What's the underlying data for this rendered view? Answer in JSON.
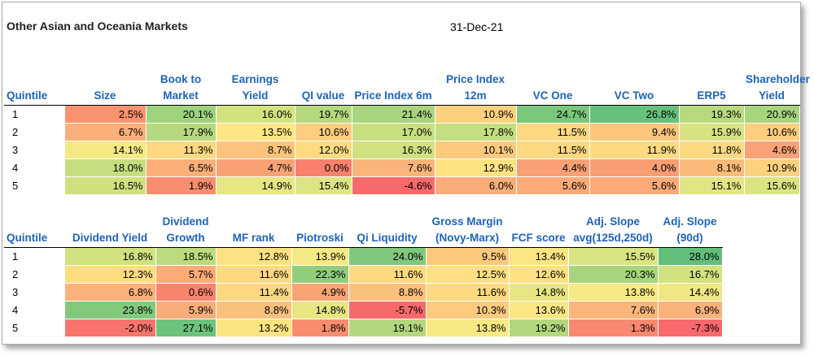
{
  "title": "Other Asian and Oceania Markets",
  "date": "31-Dec-21",
  "table1": {
    "headers": [
      "Quintile",
      "Size",
      "Book to Market",
      "Earnings Yield",
      "QI value",
      "Price Index 6m",
      "Price Index 12m",
      "VC One",
      "VC Two",
      "ERP5",
      "Shareholder Yield"
    ],
    "rows": [
      {
        "q": "1",
        "cells": [
          {
            "v": "2.5%",
            "c": "#f8926f"
          },
          {
            "v": "20.1%",
            "c": "#9fd27d"
          },
          {
            "v": "16.0%",
            "c": "#d3e27f"
          },
          {
            "v": "19.7%",
            "c": "#b5d87e"
          },
          {
            "v": "21.4%",
            "c": "#a9d47e"
          },
          {
            "v": "10.9%",
            "c": "#fbd17f"
          },
          {
            "v": "24.7%",
            "c": "#7ac77b"
          },
          {
            "v": "26.8%",
            "c": "#66c17b"
          },
          {
            "v": "19.3%",
            "c": "#b8d97e"
          },
          {
            "v": "20.9%",
            "c": "#a8d47e"
          }
        ]
      },
      {
        "q": "2",
        "cells": [
          {
            "v": "6.7%",
            "c": "#fbb07a"
          },
          {
            "v": "17.9%",
            "c": "#b6d87e"
          },
          {
            "v": "13.5%",
            "c": "#fde683"
          },
          {
            "v": "10.6%",
            "c": "#fecd7e"
          },
          {
            "v": "17.0%",
            "c": "#c7df7f"
          },
          {
            "v": "17.8%",
            "c": "#c2de7f"
          },
          {
            "v": "11.5%",
            "c": "#fcd880"
          },
          {
            "v": "9.4%",
            "c": "#fcc67d"
          },
          {
            "v": "15.9%",
            "c": "#d7e381"
          },
          {
            "v": "10.6%",
            "c": "#fecd7e"
          }
        ]
      },
      {
        "q": "3",
        "cells": [
          {
            "v": "14.1%",
            "c": "#f5e984"
          },
          {
            "v": "11.3%",
            "c": "#fdd880"
          },
          {
            "v": "8.7%",
            "c": "#fdc37c"
          },
          {
            "v": "12.0%",
            "c": "#fedb81"
          },
          {
            "v": "16.3%",
            "c": "#d0e17f"
          },
          {
            "v": "10.1%",
            "c": "#fcc97d"
          },
          {
            "v": "11.5%",
            "c": "#fcd880"
          },
          {
            "v": "11.9%",
            "c": "#fdda81"
          },
          {
            "v": "11.8%",
            "c": "#fdda81"
          },
          {
            "v": "4.6%",
            "c": "#f9a275"
          }
        ]
      },
      {
        "q": "4",
        "cells": [
          {
            "v": "18.0%",
            "c": "#c4de7f"
          },
          {
            "v": "6.5%",
            "c": "#fbaf79"
          },
          {
            "v": "4.7%",
            "c": "#f9a275"
          },
          {
            "v": "0.0%",
            "c": "#f8806d"
          },
          {
            "v": "7.6%",
            "c": "#fbb57a"
          },
          {
            "v": "12.9%",
            "c": "#fee282"
          },
          {
            "v": "4.4%",
            "c": "#f9a074"
          },
          {
            "v": "4.0%",
            "c": "#f99d73"
          },
          {
            "v": "8.1%",
            "c": "#fbbb7b"
          },
          {
            "v": "10.9%",
            "c": "#fdd17f"
          }
        ]
      },
      {
        "q": "5",
        "cells": [
          {
            "v": "16.5%",
            "c": "#cfe17f"
          },
          {
            "v": "1.9%",
            "c": "#f88d6f"
          },
          {
            "v": "14.9%",
            "c": "#e6e683"
          },
          {
            "v": "15.4%",
            "c": "#dde483"
          },
          {
            "v": "-4.6%",
            "c": "#f8696b"
          },
          {
            "v": "6.0%",
            "c": "#fbad79"
          },
          {
            "v": "5.6%",
            "c": "#fbaa78"
          },
          {
            "v": "5.6%",
            "c": "#fbaa78"
          },
          {
            "v": "15.1%",
            "c": "#e2e583"
          },
          {
            "v": "15.6%",
            "c": "#dbe482"
          }
        ]
      }
    ]
  },
  "table2": {
    "headers": [
      "Quintile",
      "Dividend Yield",
      "Dividend Growth",
      "MF rank",
      "Piotroski",
      "Qi Liquidity",
      "Gross Margin (Novy-Marx)",
      "FCF score",
      "Adj. Slope avg(125d,250d)",
      "Adj. Slope (90d)"
    ],
    "rows": [
      {
        "q": "1",
        "cells": [
          {
            "v": "16.8%",
            "c": "#d0e17f"
          },
          {
            "v": "18.5%",
            "c": "#bcdb7e"
          },
          {
            "v": "12.8%",
            "c": "#fde182"
          },
          {
            "v": "13.9%",
            "c": "#f4e984"
          },
          {
            "v": "24.0%",
            "c": "#80c87c"
          },
          {
            "v": "9.5%",
            "c": "#fcc87d"
          },
          {
            "v": "13.4%",
            "c": "#fde583"
          },
          {
            "v": "15.5%",
            "c": "#dbe482"
          },
          {
            "v": "28.0%",
            "c": "#63be7b"
          }
        ]
      },
      {
        "q": "2",
        "cells": [
          {
            "v": "12.3%",
            "c": "#fedd81"
          },
          {
            "v": "5.7%",
            "c": "#fbab78"
          },
          {
            "v": "11.6%",
            "c": "#fdd980"
          },
          {
            "v": "22.3%",
            "c": "#91cd7d"
          },
          {
            "v": "11.6%",
            "c": "#fdd980"
          },
          {
            "v": "12.5%",
            "c": "#fedf81"
          },
          {
            "v": "12.6%",
            "c": "#fee081"
          },
          {
            "v": "20.3%",
            "c": "#a8d47e"
          },
          {
            "v": "16.7%",
            "c": "#d2e27f"
          }
        ]
      },
      {
        "q": "3",
        "cells": [
          {
            "v": "6.8%",
            "c": "#fbb17a"
          },
          {
            "v": "0.6%",
            "c": "#f8846e"
          },
          {
            "v": "11.4%",
            "c": "#fdd880"
          },
          {
            "v": "4.9%",
            "c": "#f9a475"
          },
          {
            "v": "8.8%",
            "c": "#fbc17c"
          },
          {
            "v": "11.6%",
            "c": "#fdd980"
          },
          {
            "v": "14.8%",
            "c": "#e7e683"
          },
          {
            "v": "13.8%",
            "c": "#f7e984"
          },
          {
            "v": "14.4%",
            "c": "#eee784"
          }
        ]
      },
      {
        "q": "4",
        "cells": [
          {
            "v": "23.8%",
            "c": "#82c97c"
          },
          {
            "v": "5.9%",
            "c": "#fbac79"
          },
          {
            "v": "8.8%",
            "c": "#fbc17c"
          },
          {
            "v": "14.8%",
            "c": "#e7e683"
          },
          {
            "v": "-5.7%",
            "c": "#f8696b"
          },
          {
            "v": "10.3%",
            "c": "#fccb7e"
          },
          {
            "v": "13.6%",
            "c": "#fae784"
          },
          {
            "v": "7.6%",
            "c": "#fbb57a"
          },
          {
            "v": "6.9%",
            "c": "#fbb17a"
          }
        ]
      },
      {
        "q": "5",
        "cells": [
          {
            "v": "-2.0%",
            "c": "#f8736c"
          },
          {
            "v": "27.1%",
            "c": "#6cc37b"
          },
          {
            "v": "13.2%",
            "c": "#fde483"
          },
          {
            "v": "1.8%",
            "c": "#f88c6f"
          },
          {
            "v": "19.1%",
            "c": "#b3d77e"
          },
          {
            "v": "13.8%",
            "c": "#f7e984"
          },
          {
            "v": "19.2%",
            "c": "#b2d77e"
          },
          {
            "v": "1.3%",
            "c": "#f8886f"
          },
          {
            "v": "-7.3%",
            "c": "#f8696b"
          }
        ]
      }
    ]
  }
}
